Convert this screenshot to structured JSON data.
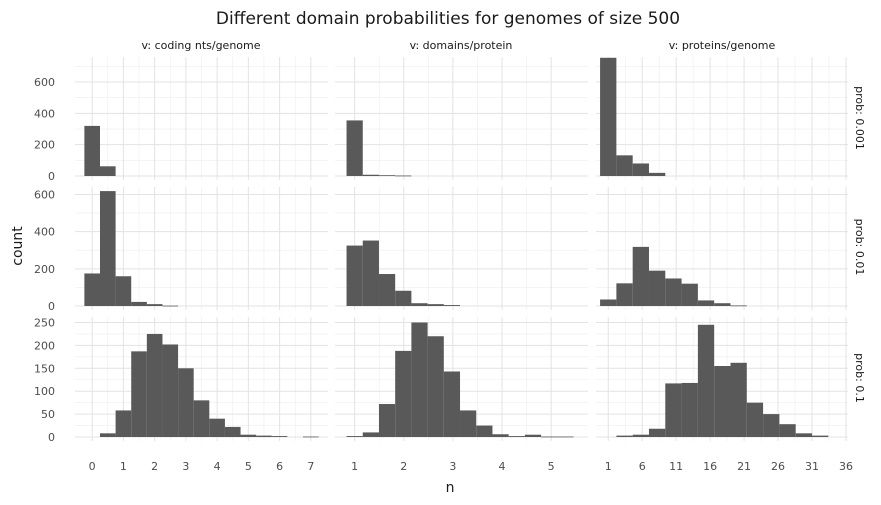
{
  "chart_data": {
    "type": "bar",
    "title": "Different domain probabilities for genomes of size 500",
    "xlabel": "n",
    "ylabel": "count",
    "bar_color": "#595959",
    "grid": true,
    "col_strips": [
      "v: coding nts/genome",
      "v: domains/protein",
      "v: proteins/genome"
    ],
    "row_strips": [
      "prob: 0.001",
      "prob: 0.01",
      "prob: 0.1"
    ],
    "row_y_axes": [
      {
        "ylim": [
          0,
          760
        ],
        "ticks": [
          0,
          200,
          400,
          600
        ]
      },
      {
        "ylim": [
          0,
          640
        ],
        "ticks": [
          0,
          200,
          400,
          600
        ]
      },
      {
        "ylim": [
          0,
          262
        ],
        "ticks": [
          0,
          50,
          100,
          150,
          200,
          250
        ]
      }
    ],
    "col_x_axes": [
      {
        "xlim": [
          -0.55,
          7.55
        ],
        "ticks": [
          0,
          1,
          2,
          3,
          4,
          5,
          6,
          7
        ]
      },
      {
        "xlim": [
          0.6,
          5.75
        ],
        "ticks": [
          1,
          2,
          3,
          4,
          5
        ]
      },
      {
        "xlim": [
          -0.8,
          36.3
        ],
        "ticks": [
          1,
          6,
          11,
          16,
          21,
          26,
          31,
          36
        ]
      }
    ],
    "panels": [
      {
        "row": 0,
        "col": 0,
        "binwidth": 0.5,
        "bars": [
          {
            "x": 0,
            "y": 320
          },
          {
            "x": 0.5,
            "y": 62
          }
        ]
      },
      {
        "row": 0,
        "col": 1,
        "binwidth": 0.33,
        "bars": [
          {
            "x": 1.0,
            "y": 355
          },
          {
            "x": 1.33,
            "y": 8
          },
          {
            "x": 1.66,
            "y": 5
          },
          {
            "x": 1.99,
            "y": 3
          }
        ]
      },
      {
        "row": 0,
        "col": 2,
        "binwidth": 2.4,
        "bars": [
          {
            "x": 1,
            "y": 755
          },
          {
            "x": 3.4,
            "y": 132
          },
          {
            "x": 5.8,
            "y": 80
          },
          {
            "x": 8.2,
            "y": 20
          }
        ]
      },
      {
        "row": 1,
        "col": 0,
        "binwidth": 0.5,
        "bars": [
          {
            "x": 0,
            "y": 175
          },
          {
            "x": 0.5,
            "y": 618
          },
          {
            "x": 1.0,
            "y": 160
          },
          {
            "x": 1.5,
            "y": 22
          },
          {
            "x": 2.0,
            "y": 10
          },
          {
            "x": 2.5,
            "y": 2
          }
        ]
      },
      {
        "row": 1,
        "col": 1,
        "binwidth": 0.33,
        "bars": [
          {
            "x": 1.0,
            "y": 325
          },
          {
            "x": 1.33,
            "y": 352
          },
          {
            "x": 1.66,
            "y": 172
          },
          {
            "x": 1.99,
            "y": 82
          },
          {
            "x": 2.32,
            "y": 15
          },
          {
            "x": 2.65,
            "y": 10
          },
          {
            "x": 2.98,
            "y": 5
          }
        ]
      },
      {
        "row": 1,
        "col": 2,
        "binwidth": 2.4,
        "bars": [
          {
            "x": 1,
            "y": 35
          },
          {
            "x": 3.4,
            "y": 122
          },
          {
            "x": 5.8,
            "y": 318
          },
          {
            "x": 8.2,
            "y": 190
          },
          {
            "x": 10.6,
            "y": 148
          },
          {
            "x": 13.0,
            "y": 120
          },
          {
            "x": 15.4,
            "y": 30
          },
          {
            "x": 17.8,
            "y": 15
          },
          {
            "x": 20.2,
            "y": 3
          }
        ]
      },
      {
        "row": 2,
        "col": 0,
        "binwidth": 0.5,
        "bars": [
          {
            "x": 0.5,
            "y": 8
          },
          {
            "x": 1.0,
            "y": 58
          },
          {
            "x": 1.5,
            "y": 187
          },
          {
            "x": 2.0,
            "y": 225
          },
          {
            "x": 2.5,
            "y": 202
          },
          {
            "x": 3.0,
            "y": 150
          },
          {
            "x": 3.5,
            "y": 80
          },
          {
            "x": 4.0,
            "y": 40
          },
          {
            "x": 4.5,
            "y": 22
          },
          {
            "x": 5.0,
            "y": 5
          },
          {
            "x": 5.5,
            "y": 3
          },
          {
            "x": 6.0,
            "y": 2
          },
          {
            "x": 7.0,
            "y": 1
          }
        ]
      },
      {
        "row": 2,
        "col": 1,
        "binwidth": 0.33,
        "bars": [
          {
            "x": 1.0,
            "y": 2
          },
          {
            "x": 1.33,
            "y": 10
          },
          {
            "x": 1.66,
            "y": 72
          },
          {
            "x": 1.99,
            "y": 188
          },
          {
            "x": 2.32,
            "y": 250
          },
          {
            "x": 2.65,
            "y": 220
          },
          {
            "x": 2.98,
            "y": 143
          },
          {
            "x": 3.31,
            "y": 58
          },
          {
            "x": 3.64,
            "y": 25
          },
          {
            "x": 3.97,
            "y": 6
          },
          {
            "x": 4.3,
            "y": 2
          },
          {
            "x": 4.63,
            "y": 5
          },
          {
            "x": 4.96,
            "y": 1
          },
          {
            "x": 5.29,
            "y": 1
          }
        ]
      },
      {
        "row": 2,
        "col": 2,
        "binwidth": 2.4,
        "bars": [
          {
            "x": 3.4,
            "y": 3
          },
          {
            "x": 5.8,
            "y": 5
          },
          {
            "x": 8.2,
            "y": 18
          },
          {
            "x": 10.6,
            "y": 117
          },
          {
            "x": 13.0,
            "y": 118
          },
          {
            "x": 15.4,
            "y": 245
          },
          {
            "x": 17.8,
            "y": 155
          },
          {
            "x": 20.2,
            "y": 162
          },
          {
            "x": 22.6,
            "y": 75
          },
          {
            "x": 25.0,
            "y": 50
          },
          {
            "x": 27.4,
            "y": 28
          },
          {
            "x": 29.8,
            "y": 8
          },
          {
            "x": 32.2,
            "y": 3
          }
        ]
      }
    ]
  }
}
